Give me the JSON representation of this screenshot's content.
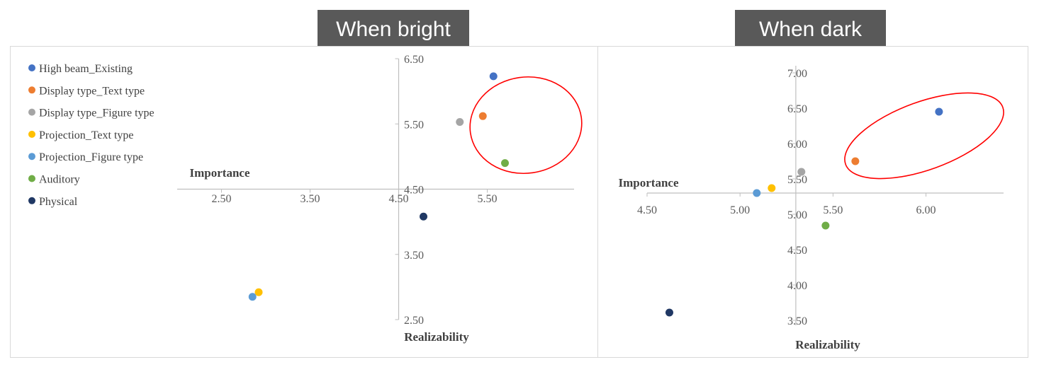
{
  "titles": {
    "left": "When bright",
    "right": "When dark"
  },
  "colors": {
    "axis": "#bfbfbf",
    "ellipse": "#ff0000"
  },
  "chart_data": [
    {
      "type": "scatter",
      "title": "When bright",
      "xlabel": "Realizability",
      "ylabel": "Importance",
      "xlim": [
        2.0,
        6.0
      ],
      "ylim": [
        2.5,
        6.5
      ],
      "axes_cross": [
        4.5,
        4.5
      ],
      "xticks": [
        "2.50",
        "3.50",
        "4.50",
        "5.50"
      ],
      "yticks": [
        "2.50",
        "3.50",
        "4.50",
        "5.50",
        "6.50"
      ],
      "legend_placement": "top-left",
      "series": [
        {
          "name": "High beam_Existing",
          "color": "#4472c4",
          "x": 5.57,
          "y": 6.23
        },
        {
          "name": "Display type_Text type",
          "color": "#ed7d31",
          "x": 5.45,
          "y": 5.62
        },
        {
          "name": "Display type_Figure type",
          "color": "#a5a5a5",
          "x": 5.19,
          "y": 5.53
        },
        {
          "name": "Projection_Text type",
          "color": "#ffc000",
          "x": 2.92,
          "y": 2.92
        },
        {
          "name": "Projection_Figure type",
          "color": "#5b9bd5",
          "x": 2.85,
          "y": 2.85
        },
        {
          "name": "Auditory",
          "color": "#70ad47",
          "x": 5.7,
          "y": 4.9
        },
        {
          "name": "Physical",
          "color": "#203864",
          "x": 4.78,
          "y": 4.08
        }
      ]
    },
    {
      "type": "scatter",
      "title": "When dark",
      "xlabel": "Realizability",
      "ylabel": "Importance",
      "xlim": [
        4.5,
        6.2
      ],
      "ylim": [
        3.5,
        7.0
      ],
      "axes_cross": [
        5.3,
        5.3
      ],
      "xticks": [
        "4.50",
        "5.00",
        "5.50",
        "6.00"
      ],
      "yticks": [
        "3.50",
        "4.00",
        "4.50",
        "5.00",
        "5.50",
        "6.00",
        "6.50",
        "7.00"
      ],
      "series": [
        {
          "name": "High beam_Existing",
          "color": "#4472c4",
          "x": 6.07,
          "y": 6.45
        },
        {
          "name": "Display type_Text type",
          "color": "#ed7d31",
          "x": 5.62,
          "y": 5.75
        },
        {
          "name": "Display type_Figure type",
          "color": "#a5a5a5",
          "x": 5.33,
          "y": 5.6
        },
        {
          "name": "Projection_Text type",
          "color": "#ffc000",
          "x": 5.17,
          "y": 5.37
        },
        {
          "name": "Projection_Figure type",
          "color": "#5b9bd5",
          "x": 5.09,
          "y": 5.3
        },
        {
          "name": "Auditory",
          "color": "#70ad47",
          "x": 5.46,
          "y": 4.84
        },
        {
          "name": "Physical",
          "color": "#203864",
          "x": 4.62,
          "y": 3.61
        }
      ]
    }
  ]
}
